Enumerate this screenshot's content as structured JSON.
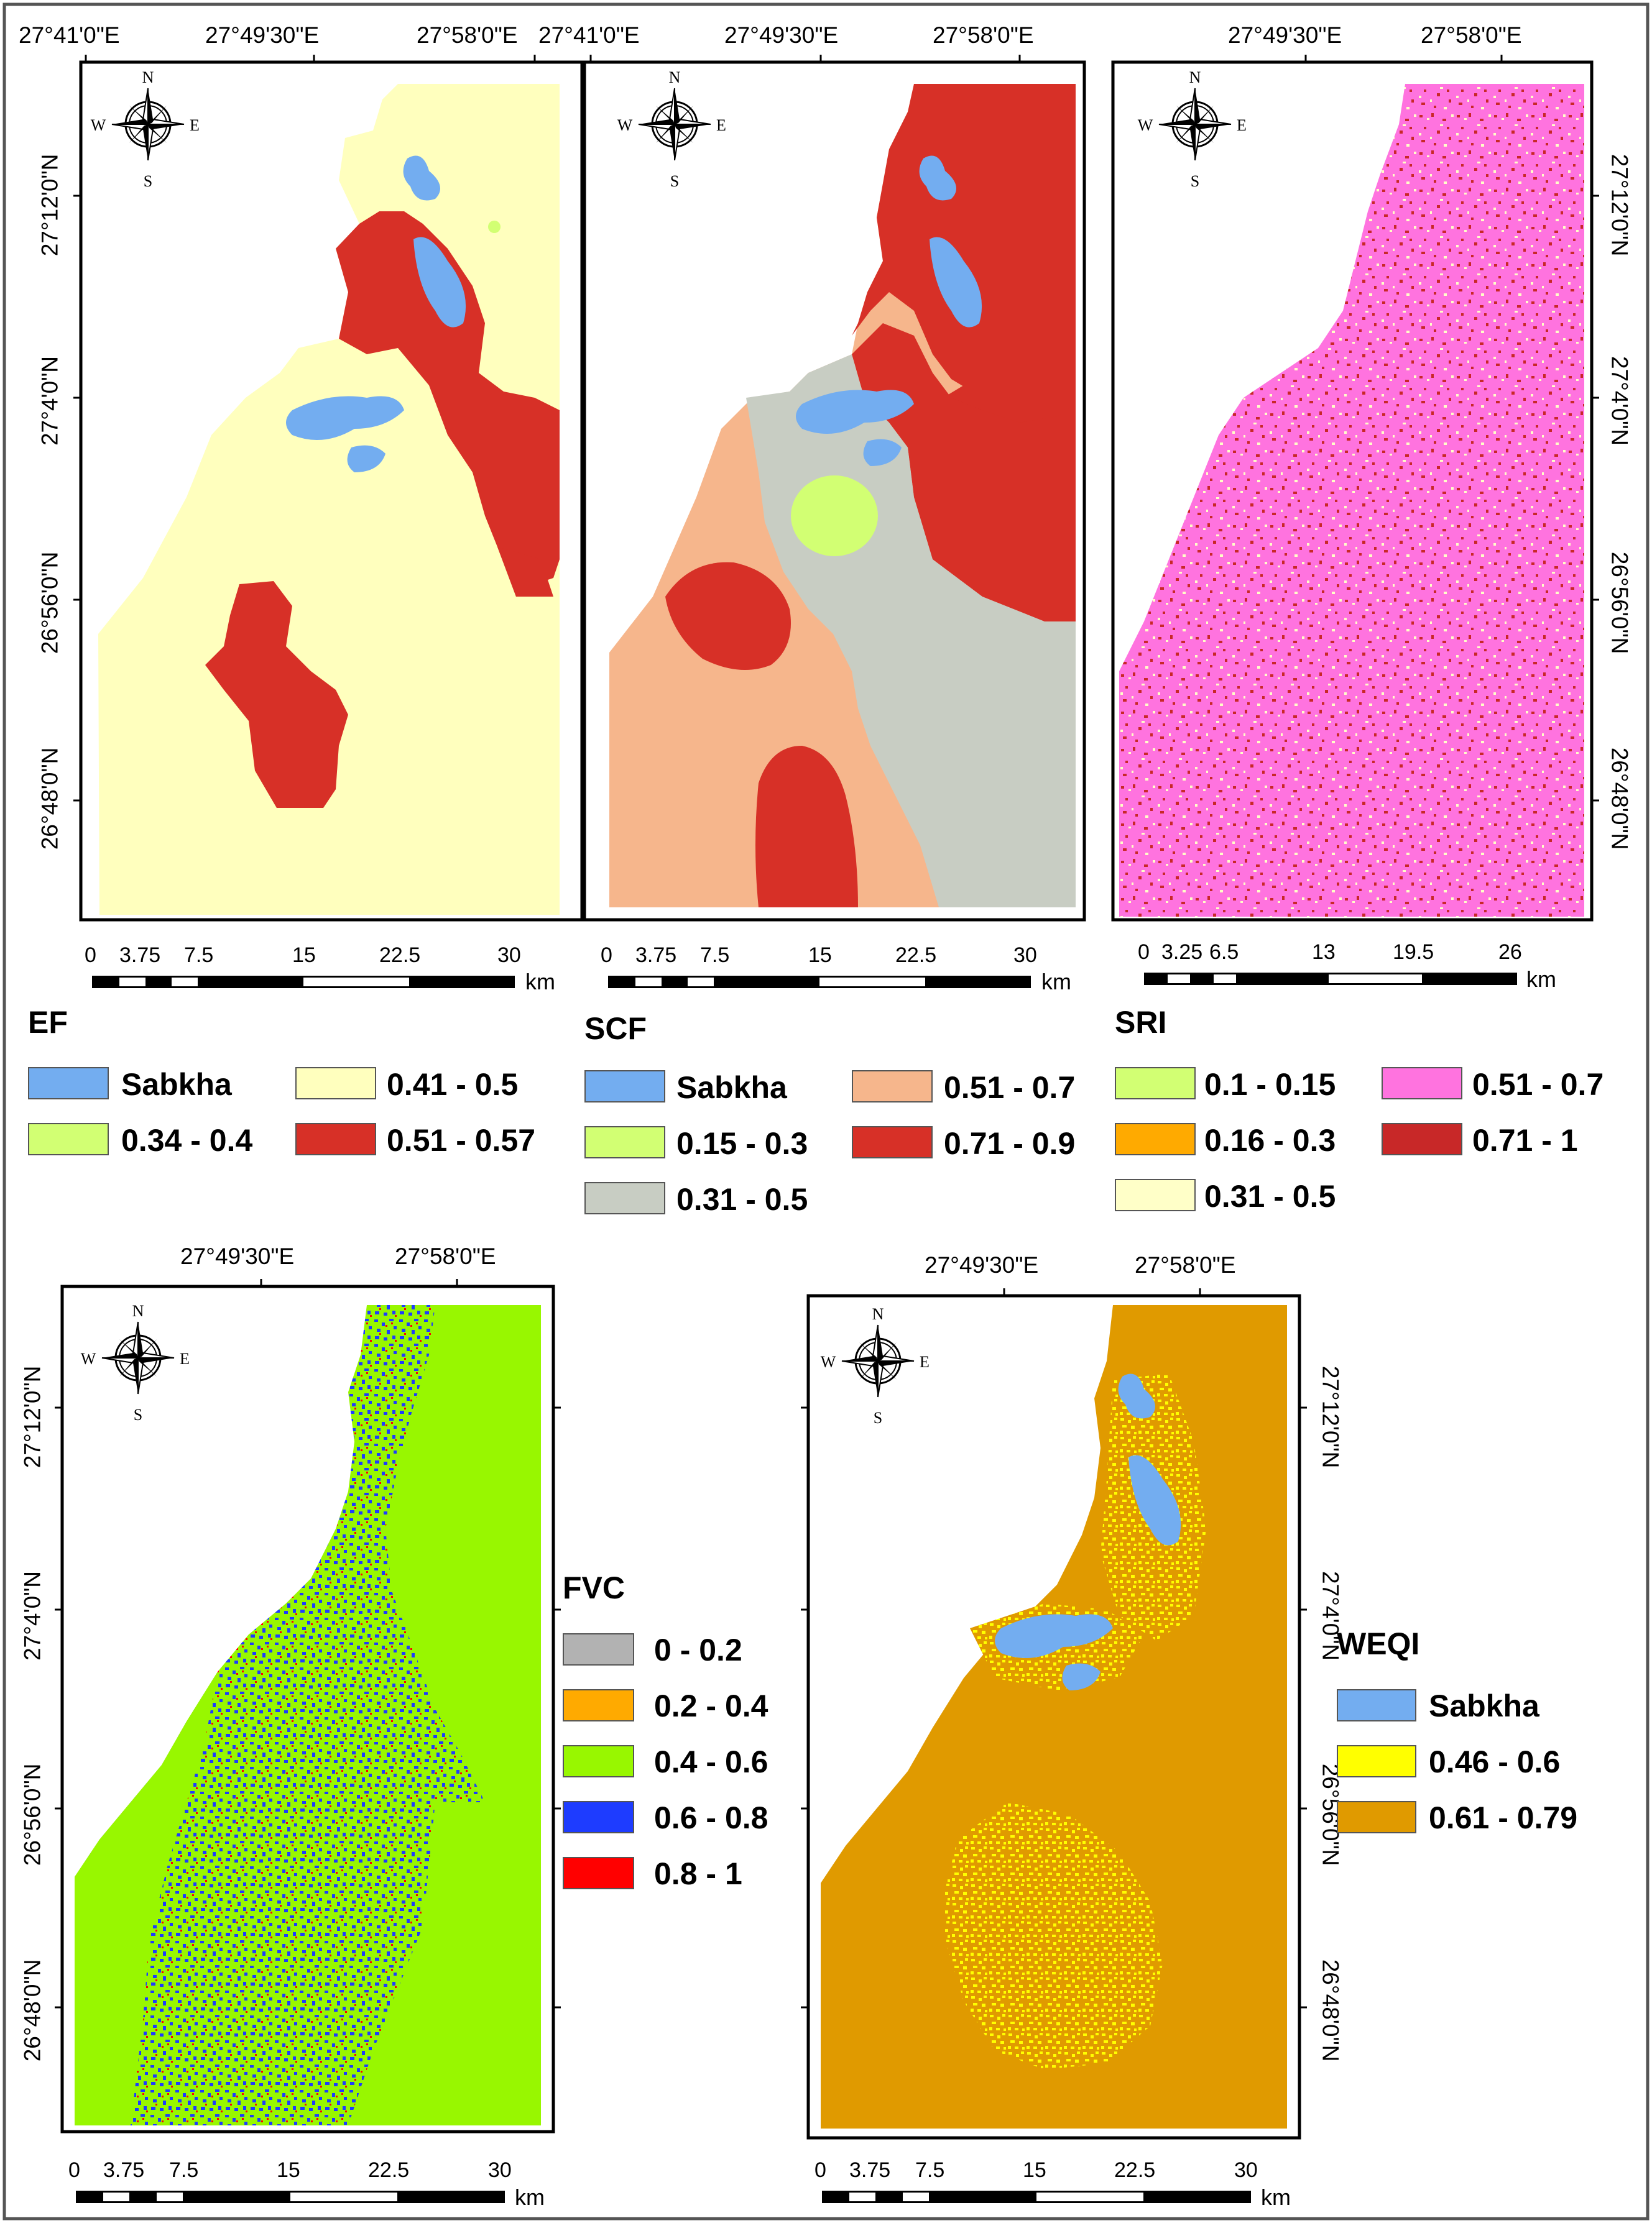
{
  "longitude_ticks": {
    "a": "27°41'0\"E",
    "b": "27°49'30\"E",
    "c": "27°58'0\"E"
  },
  "latitude_ticks": {
    "a": "27°12'0\"N",
    "b": "27°4'0\"N",
    "c": "26°56'0\"N",
    "d": "26°48'0\"N"
  },
  "compass": {
    "n": "N",
    "s": "S",
    "e": "E",
    "w": "W"
  },
  "scale": {
    "unit": "km",
    "ticks_standard": [
      "0",
      "3.75",
      "7.5",
      "15",
      "22.5",
      "30"
    ],
    "ticks_sri": [
      "0",
      "3.25",
      "6.5",
      "13",
      "19.5",
      "26"
    ]
  },
  "colors": {
    "sabkha": "#73adf0",
    "ef_low": "#d2ff73",
    "ef_mid": "#ffffbe",
    "ef_high": "#d73027",
    "scf_green": "#d2ff73",
    "scf_grey": "#c8cdc3",
    "scf_orange": "#f6b68c",
    "scf_red": "#d73027",
    "sri_orange": "#ffaa00",
    "sri_cream": "#ffffc8",
    "sri_pink": "#ff73df",
    "sri_red": "#c82828",
    "fvc_grey": "#b2b2b2",
    "fvc_orange": "#ffaa00",
    "fvc_green": "#98f700",
    "fvc_blue": "#1e3cff",
    "fvc_red": "#ff0000",
    "weqi_yellow": "#ffff00",
    "weqi_orange": "#e09a00"
  },
  "maps": {
    "ef": {
      "legend_title": "EF",
      "classes": [
        "Sabkha",
        "0.34 - 0.4",
        "0.41 - 0.5",
        "0.51 - 0.57"
      ]
    },
    "scf": {
      "legend_title": "SCF",
      "classes": [
        "Sabkha",
        "0.15 - 0.3",
        "0.31 - 0.5",
        "0.51 - 0.7",
        "0.71 - 0.9"
      ]
    },
    "sri": {
      "legend_title": "SRI",
      "classes": [
        "0.1 - 0.15",
        "0.16 - 0.3",
        "0.31 - 0.5",
        "0.51 - 0.7",
        "0.71 - 1"
      ]
    },
    "fvc": {
      "legend_title": "FVC",
      "classes": [
        "0 - 0.2",
        "0.2 - 0.4",
        "0.4 - 0.6",
        "0.6 - 0.8",
        "0.8 - 1"
      ]
    },
    "weqi": {
      "legend_title": "WEQI",
      "classes": [
        "Sabkha",
        "0.46 - 0.6",
        "0.61 - 0.79"
      ]
    }
  }
}
